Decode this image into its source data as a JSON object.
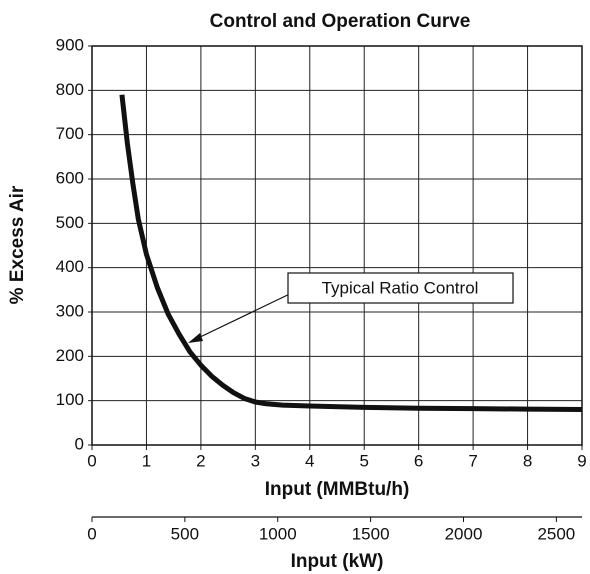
{
  "chart_data": {
    "type": "line",
    "title": "Control  and Operation Curve",
    "xlabel": "Input (MMBtu/h)",
    "ylabel": "% Excess Air",
    "x2label": "Input (kW)",
    "x": [
      0.55,
      0.65,
      0.75,
      0.85,
      1,
      1.2,
      1.4,
      1.6,
      1.8,
      2,
      2.2,
      2.4,
      2.6,
      2.8,
      3,
      3.2,
      3.5,
      4,
      5,
      6,
      7,
      8,
      9
    ],
    "series": [
      {
        "name": "Typical Ratio Control",
        "color": "#111111",
        "values": [
          790,
          680,
          590,
          510,
          430,
          355,
          295,
          250,
          210,
          180,
          155,
          135,
          118,
          105,
          97,
          93,
          90,
          88,
          85,
          83,
          82,
          81,
          80
        ]
      }
    ],
    "xlim": [
      0,
      9
    ],
    "xticks": [
      0,
      1,
      2,
      3,
      4,
      5,
      6,
      7,
      8,
      9
    ],
    "ylim": [
      0,
      900
    ],
    "yticks": [
      0,
      100,
      200,
      300,
      400,
      500,
      600,
      700,
      800,
      900
    ],
    "x2lim": [
      0,
      2638
    ],
    "x2ticks": [
      0,
      500,
      1000,
      1500,
      2000,
      2500
    ],
    "grid": true,
    "annotation": "Typical Ratio Control"
  }
}
